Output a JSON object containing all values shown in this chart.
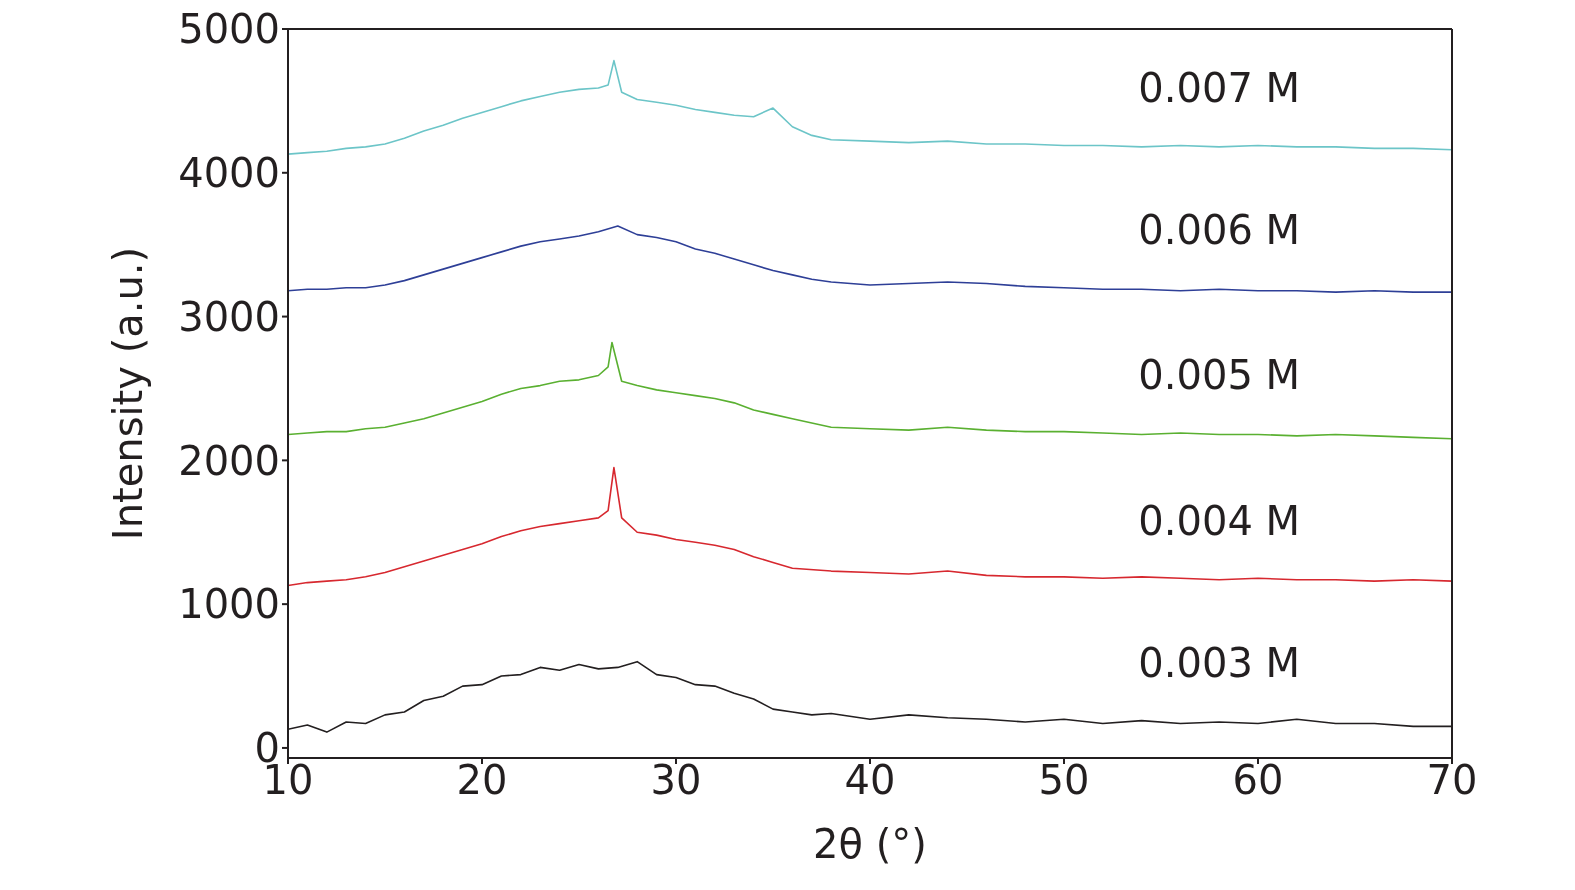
{
  "chart_data": {
    "type": "line",
    "xlabel": "2θ (°)",
    "ylabel": "Intensity (a.u.)",
    "xlim": [
      10,
      70
    ],
    "xticks": [
      10,
      20,
      30,
      40,
      50,
      60,
      70
    ],
    "ylim": [
      -70,
      5000
    ],
    "yticks": [
      0,
      1000,
      2000,
      3000,
      4000,
      5000
    ],
    "grid": false,
    "legend": false,
    "marker": "none",
    "line_style": "solid",
    "series": [
      {
        "name": "0.003 M",
        "color": "#231f20",
        "x": [
          10,
          11,
          12,
          13,
          14,
          15,
          16,
          17,
          18,
          19,
          20,
          21,
          22,
          23,
          24,
          25,
          26,
          27,
          28,
          29,
          30,
          31,
          32,
          33,
          34,
          35,
          36,
          37,
          38,
          40,
          42,
          44,
          46,
          48,
          50,
          52,
          54,
          56,
          58,
          60,
          62,
          64,
          66,
          68,
          70
        ],
        "values": [
          130,
          160,
          110,
          180,
          170,
          230,
          250,
          330,
          360,
          430,
          440,
          500,
          510,
          560,
          540,
          580,
          550,
          560,
          600,
          510,
          490,
          440,
          430,
          380,
          340,
          270,
          250,
          230,
          240,
          200,
          230,
          210,
          200,
          180,
          200,
          170,
          190,
          170,
          180,
          170,
          200,
          170,
          170,
          150,
          150
        ]
      },
      {
        "name": "0.004 M",
        "color": "#d7282f",
        "x": [
          10,
          11,
          12,
          13,
          14,
          15,
          16,
          17,
          18,
          19,
          20,
          21,
          22,
          23,
          24,
          25,
          26,
          26.5,
          26.8,
          27.2,
          28,
          29,
          30,
          31,
          32,
          33,
          34,
          35,
          36,
          38,
          40,
          42,
          44,
          46,
          48,
          50,
          52,
          54,
          56,
          58,
          60,
          62,
          64,
          66,
          68,
          70
        ],
        "values": [
          1130,
          1150,
          1160,
          1170,
          1190,
          1220,
          1260,
          1300,
          1340,
          1380,
          1420,
          1470,
          1510,
          1540,
          1560,
          1580,
          1600,
          1650,
          1950,
          1600,
          1500,
          1480,
          1450,
          1430,
          1410,
          1380,
          1330,
          1290,
          1250,
          1230,
          1220,
          1210,
          1230,
          1200,
          1190,
          1190,
          1180,
          1190,
          1180,
          1170,
          1180,
          1170,
          1170,
          1160,
          1170,
          1160
        ]
      },
      {
        "name": "0.005 M",
        "color": "#5ab031",
        "x": [
          10,
          11,
          12,
          13,
          14,
          15,
          16,
          17,
          18,
          19,
          20,
          21,
          22,
          23,
          24,
          25,
          26,
          26.5,
          26.7,
          27.2,
          28,
          29,
          30,
          31,
          32,
          33,
          34,
          35,
          36,
          38,
          40,
          42,
          44,
          46,
          48,
          50,
          52,
          54,
          56,
          58,
          60,
          62,
          64,
          66,
          68,
          70
        ],
        "values": [
          2180,
          2190,
          2200,
          2200,
          2220,
          2230,
          2260,
          2290,
          2330,
          2370,
          2410,
          2460,
          2500,
          2520,
          2550,
          2560,
          2590,
          2650,
          2820,
          2550,
          2520,
          2490,
          2470,
          2450,
          2430,
          2400,
          2350,
          2320,
          2290,
          2230,
          2220,
          2210,
          2230,
          2210,
          2200,
          2200,
          2190,
          2180,
          2190,
          2180,
          2180,
          2170,
          2180,
          2170,
          2160,
          2150
        ]
      },
      {
        "name": "0.006 M",
        "color": "#2e3f97",
        "x": [
          10,
          11,
          12,
          13,
          14,
          15,
          16,
          17,
          18,
          19,
          20,
          21,
          22,
          23,
          24,
          25,
          26,
          27,
          28,
          29,
          30,
          31,
          32,
          33,
          34,
          35,
          36,
          37,
          38,
          40,
          42,
          44,
          46,
          48,
          50,
          52,
          54,
          56,
          58,
          60,
          62,
          64,
          66,
          68,
          70
        ],
        "values": [
          3180,
          3190,
          3190,
          3200,
          3200,
          3220,
          3250,
          3290,
          3330,
          3370,
          3410,
          3450,
          3490,
          3520,
          3540,
          3560,
          3590,
          3630,
          3570,
          3550,
          3520,
          3470,
          3440,
          3400,
          3360,
          3320,
          3290,
          3260,
          3240,
          3220,
          3230,
          3240,
          3230,
          3210,
          3200,
          3190,
          3190,
          3180,
          3190,
          3180,
          3180,
          3170,
          3180,
          3170,
          3170
        ]
      },
      {
        "name": "0.007 M",
        "color": "#6cc5c8",
        "x": [
          10,
          11,
          12,
          13,
          14,
          15,
          16,
          17,
          18,
          19,
          20,
          21,
          22,
          23,
          24,
          25,
          26,
          26.5,
          26.8,
          27.2,
          28,
          29,
          30,
          31,
          32,
          33,
          34,
          35,
          36,
          37,
          38,
          40,
          42,
          44,
          46,
          48,
          50,
          52,
          54,
          56,
          58,
          60,
          62,
          64,
          66,
          68,
          70
        ],
        "values": [
          4130,
          4140,
          4150,
          4170,
          4180,
          4200,
          4240,
          4290,
          4330,
          4380,
          4420,
          4460,
          4500,
          4530,
          4560,
          4580,
          4590,
          4610,
          4780,
          4560,
          4510,
          4490,
          4470,
          4440,
          4420,
          4400,
          4390,
          4450,
          4320,
          4260,
          4230,
          4220,
          4210,
          4220,
          4200,
          4200,
          4190,
          4190,
          4180,
          4190,
          4180,
          4190,
          4180,
          4180,
          4170,
          4170,
          4160
        ]
      }
    ]
  }
}
